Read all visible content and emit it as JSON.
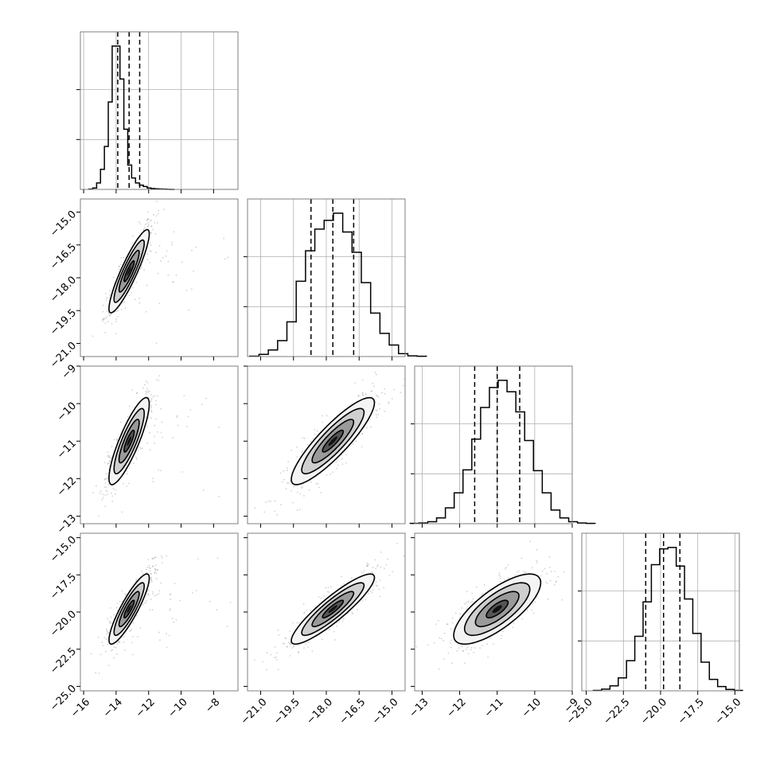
{
  "chart_data": {
    "type": "corner",
    "parameters": [
      {
        "index": 0,
        "range": [
          -16.2,
          -6.5
        ],
        "ticks": [
          -16,
          -14,
          -12,
          -10,
          -8
        ],
        "tick_labels": [
          "−16",
          "−14",
          "−12",
          "−10",
          "−8"
        ],
        "median": -13.2,
        "q16": -13.9,
        "q84": -12.55,
        "sigma": 0.62
      },
      {
        "index": 1,
        "range": [
          -21.6,
          -14.4
        ],
        "ticks": [
          -21.0,
          -19.5,
          -18.0,
          -16.5,
          -15.0
        ],
        "tick_labels": [
          "−21.0",
          "−19.5",
          "−18.0",
          "−16.5",
          "−15.0"
        ],
        "median": -17.7,
        "q16": -18.7,
        "q84": -16.75,
        "sigma": 0.95
      },
      {
        "index": 2,
        "range": [
          -13.2,
          -9.0
        ],
        "ticks": [
          -13,
          -12,
          -11,
          -10,
          -9
        ],
        "tick_labels": [
          "−13",
          "−12",
          "−11",
          "−10",
          "−9"
        ],
        "median": -11.0,
        "q16": -11.6,
        "q84": -10.4,
        "sigma": 0.58
      },
      {
        "index": 3,
        "range": [
          -25.3,
          -14.7
        ],
        "ticks": [
          -25.0,
          -22.5,
          -20.0,
          -17.5,
          -15.0
        ],
        "tick_labels": [
          "−25.0",
          "−22.5",
          "−20.0",
          "−17.5",
          "−15.0"
        ],
        "median": -19.8,
        "q16": -21.0,
        "q84": -18.7,
        "sigma": 1.18
      }
    ],
    "correlations": [
      [
        1,
        0.9,
        0.85,
        0.88
      ],
      [
        0.9,
        1,
        0.88,
        0.9
      ],
      [
        0.85,
        0.88,
        1,
        0.75
      ],
      [
        0.88,
        0.9,
        0.75,
        1
      ]
    ],
    "histograms": [
      {
        "param": 0,
        "counts": [
          2,
          10,
          45,
          140,
          300,
          610,
          1000,
          1000,
          770,
          420,
          170,
          80,
          45,
          30,
          20,
          10,
          6,
          4,
          3,
          2,
          1,
          0
        ]
      },
      {
        "param": 1,
        "counts": [
          3,
          15,
          45,
          110,
          240,
          520,
          730,
          880,
          940,
          990,
          860,
          720,
          510,
          300,
          160,
          80,
          20,
          5,
          2
        ]
      },
      {
        "param": 2,
        "counts": [
          2,
          5,
          14,
          40,
          110,
          215,
          375,
          590,
          810,
          950,
          1000,
          920,
          780,
          580,
          370,
          215,
          95,
          40,
          14,
          5,
          2
        ]
      },
      {
        "param": 3,
        "counts": [
          3,
          12,
          35,
          90,
          210,
          380,
          620,
          880,
          990,
          1000,
          870,
          640,
          400,
          200,
          80,
          30,
          10,
          3
        ]
      }
    ],
    "contour_levels_sigma": [
      0.5,
      1.0,
      1.5,
      2.0
    ],
    "grid": true,
    "title": "",
    "xlabel": "",
    "ylabel": ""
  }
}
